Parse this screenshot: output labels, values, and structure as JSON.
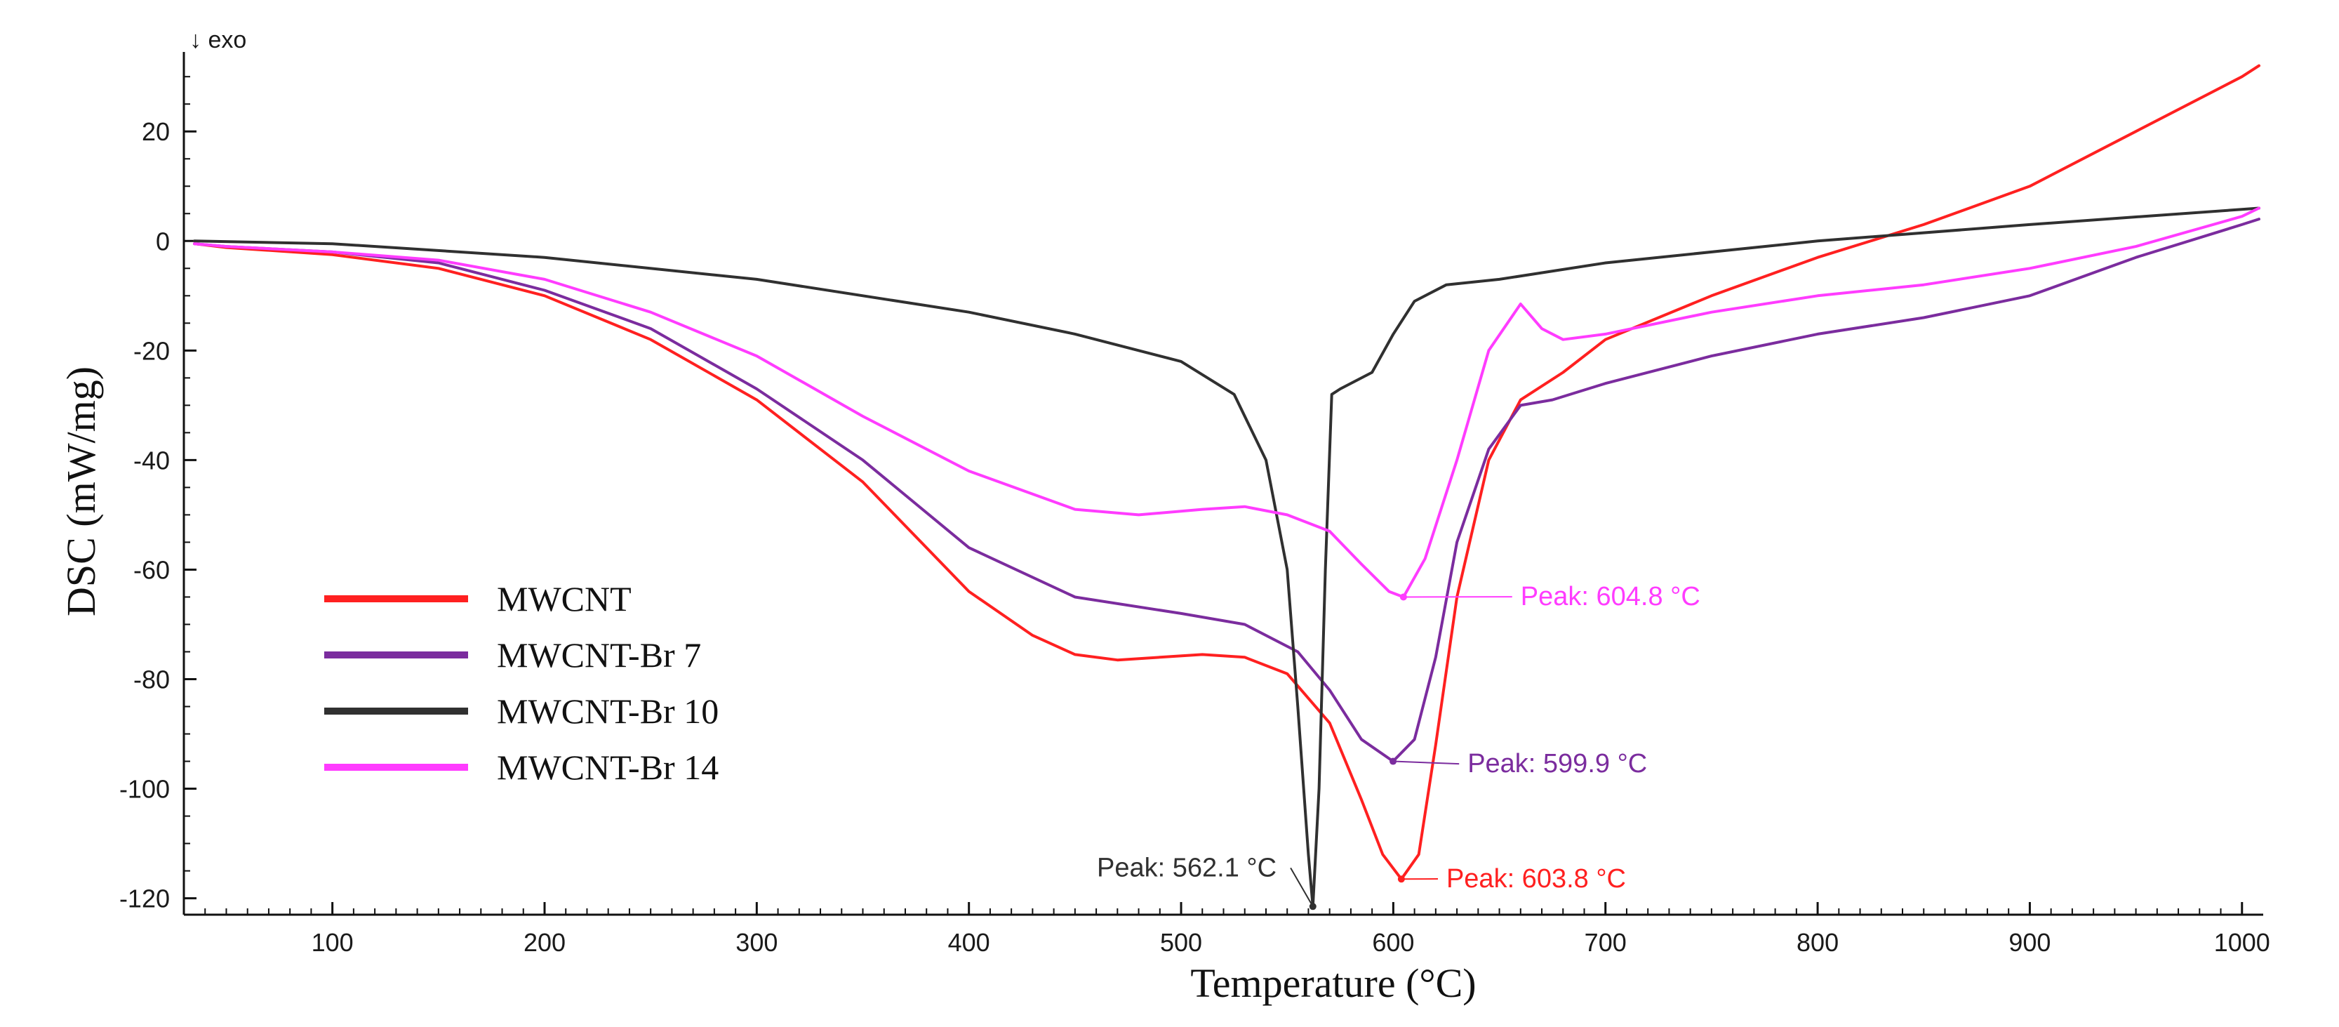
{
  "chart_data": {
    "type": "line",
    "exo_indicator": "↓ exo",
    "xlabel": "Temperature (°C)",
    "ylabel": "DSC (mW/mg)",
    "xlim": [
      30,
      1010
    ],
    "ylim": [
      -123,
      34
    ],
    "x_ticks": [
      100,
      200,
      300,
      400,
      500,
      600,
      700,
      800,
      900,
      1000
    ],
    "y_ticks": [
      20,
      0,
      -20,
      -40,
      -60,
      -80,
      -100,
      -120
    ],
    "grid": false,
    "legend_position": "lower-left",
    "series": [
      {
        "name": "MWCNT",
        "color": "#ff2020",
        "points": [
          [
            35,
            -0.5
          ],
          [
            50,
            -1.2
          ],
          [
            100,
            -2.5
          ],
          [
            150,
            -5
          ],
          [
            200,
            -10
          ],
          [
            250,
            -18
          ],
          [
            300,
            -29
          ],
          [
            350,
            -44
          ],
          [
            400,
            -64
          ],
          [
            430,
            -72
          ],
          [
            450,
            -75.5
          ],
          [
            470,
            -76.5
          ],
          [
            490,
            -76
          ],
          [
            510,
            -75.5
          ],
          [
            530,
            -76
          ],
          [
            550,
            -79
          ],
          [
            570,
            -88
          ],
          [
            585,
            -102
          ],
          [
            595,
            -112
          ],
          [
            603.8,
            -116.5
          ],
          [
            612,
            -112
          ],
          [
            620,
            -92
          ],
          [
            630,
            -65
          ],
          [
            645,
            -40
          ],
          [
            660,
            -29
          ],
          [
            680,
            -24
          ],
          [
            700,
            -18
          ],
          [
            750,
            -10
          ],
          [
            800,
            -3
          ],
          [
            850,
            3
          ],
          [
            900,
            10
          ],
          [
            950,
            20
          ],
          [
            1000,
            30
          ],
          [
            1008,
            32
          ]
        ]
      },
      {
        "name": "MWCNT-Br 7",
        "color": "#7b2c9e",
        "points": [
          [
            35,
            -0.5
          ],
          [
            50,
            -1
          ],
          [
            100,
            -2
          ],
          [
            150,
            -4
          ],
          [
            200,
            -9
          ],
          [
            250,
            -16
          ],
          [
            300,
            -27
          ],
          [
            350,
            -40
          ],
          [
            400,
            -56
          ],
          [
            450,
            -65
          ],
          [
            500,
            -68
          ],
          [
            530,
            -70
          ],
          [
            555,
            -75
          ],
          [
            570,
            -82
          ],
          [
            585,
            -91
          ],
          [
            599.9,
            -95
          ],
          [
            610,
            -91
          ],
          [
            620,
            -76
          ],
          [
            630,
            -55
          ],
          [
            645,
            -38
          ],
          [
            660,
            -30
          ],
          [
            675,
            -29
          ],
          [
            700,
            -26
          ],
          [
            750,
            -21
          ],
          [
            800,
            -17
          ],
          [
            850,
            -14
          ],
          [
            900,
            -10
          ],
          [
            950,
            -3
          ],
          [
            1000,
            3
          ],
          [
            1008,
            4
          ]
        ]
      },
      {
        "name": "MWCNT-Br 10",
        "color": "#303030",
        "points": [
          [
            35,
            0
          ],
          [
            100,
            -0.5
          ],
          [
            200,
            -3
          ],
          [
            300,
            -7
          ],
          [
            400,
            -13
          ],
          [
            450,
            -17
          ],
          [
            500,
            -22
          ],
          [
            525,
            -28
          ],
          [
            540,
            -40
          ],
          [
            550,
            -60
          ],
          [
            555,
            -85
          ],
          [
            560,
            -112
          ],
          [
            562.1,
            -121.5
          ],
          [
            565,
            -100
          ],
          [
            568,
            -60
          ],
          [
            571,
            -28
          ],
          [
            575,
            -27
          ],
          [
            590,
            -24
          ],
          [
            600,
            -17
          ],
          [
            610,
            -11
          ],
          [
            625,
            -8
          ],
          [
            650,
            -7
          ],
          [
            700,
            -4
          ],
          [
            800,
            0
          ],
          [
            900,
            3
          ],
          [
            1008,
            6
          ]
        ]
      },
      {
        "name": "MWCNT-Br 14",
        "color": "#ff3cff",
        "points": [
          [
            35,
            -0.5
          ],
          [
            50,
            -1
          ],
          [
            100,
            -2
          ],
          [
            150,
            -3.5
          ],
          [
            200,
            -7
          ],
          [
            250,
            -13
          ],
          [
            300,
            -21
          ],
          [
            350,
            -32
          ],
          [
            400,
            -42
          ],
          [
            450,
            -49
          ],
          [
            480,
            -50
          ],
          [
            510,
            -49
          ],
          [
            530,
            -48.5
          ],
          [
            550,
            -50
          ],
          [
            570,
            -53
          ],
          [
            585,
            -59
          ],
          [
            598,
            -64
          ],
          [
            604.8,
            -65
          ],
          [
            615,
            -58
          ],
          [
            630,
            -40
          ],
          [
            645,
            -20
          ],
          [
            660,
            -11.5
          ],
          [
            670,
            -16
          ],
          [
            680,
            -18
          ],
          [
            700,
            -17
          ],
          [
            750,
            -13
          ],
          [
            800,
            -10
          ],
          [
            850,
            -8
          ],
          [
            900,
            -5
          ],
          [
            950,
            -1
          ],
          [
            1000,
            4.5
          ],
          [
            1008,
            6
          ]
        ]
      }
    ],
    "annotations": [
      {
        "text": "Peak: 604.8 °C",
        "series": "MWCNT-Br 14",
        "x": 604.8,
        "y": -65,
        "label_x": 660,
        "label_y": -66.5,
        "anchor": "start"
      },
      {
        "text": "Peak: 599.9 °C",
        "series": "MWCNT-Br 7",
        "x": 599.9,
        "y": -95,
        "label_x": 635,
        "label_y": -97,
        "anchor": "start"
      },
      {
        "text": "Peak: 603.8 °C",
        "series": "MWCNT",
        "x": 603.8,
        "y": -116.5,
        "label_x": 625,
        "label_y": -118,
        "anchor": "start"
      },
      {
        "text": "Peak: 562.1 °C",
        "series": "MWCNT-Br 10",
        "x": 562.1,
        "y": -121.5,
        "label_x": 545,
        "label_y": -116,
        "anchor": "end"
      }
    ]
  }
}
